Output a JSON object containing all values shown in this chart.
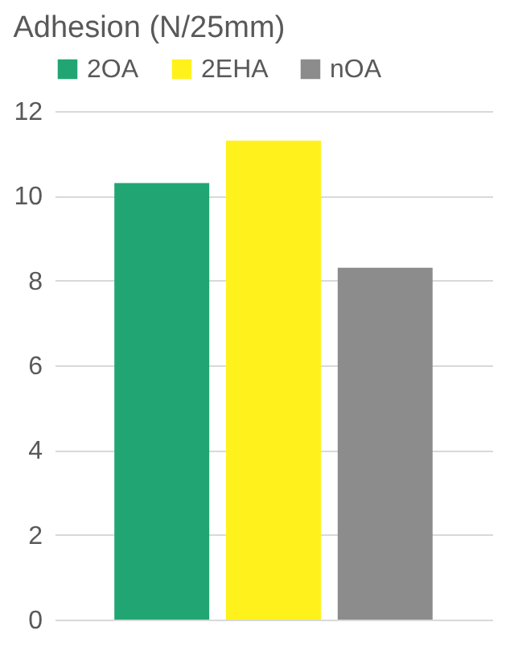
{
  "chart_data": {
    "type": "bar",
    "title": "Adhesion (N/25mm)",
    "categories": [
      null
    ],
    "series": [
      {
        "name": "2OA",
        "color": "#21a673",
        "values": [
          10.3
        ]
      },
      {
        "name": "2EHA",
        "color": "#fff21c",
        "values": [
          11.3
        ]
      },
      {
        "name": "nOA",
        "color": "#8c8c8c",
        "values": [
          8.3
        ]
      }
    ],
    "ylim": [
      0,
      12
    ],
    "yticks": [
      0,
      2,
      4,
      6,
      8,
      10,
      12
    ],
    "grid": "y",
    "legend": "top",
    "tick_labels": "y"
  }
}
